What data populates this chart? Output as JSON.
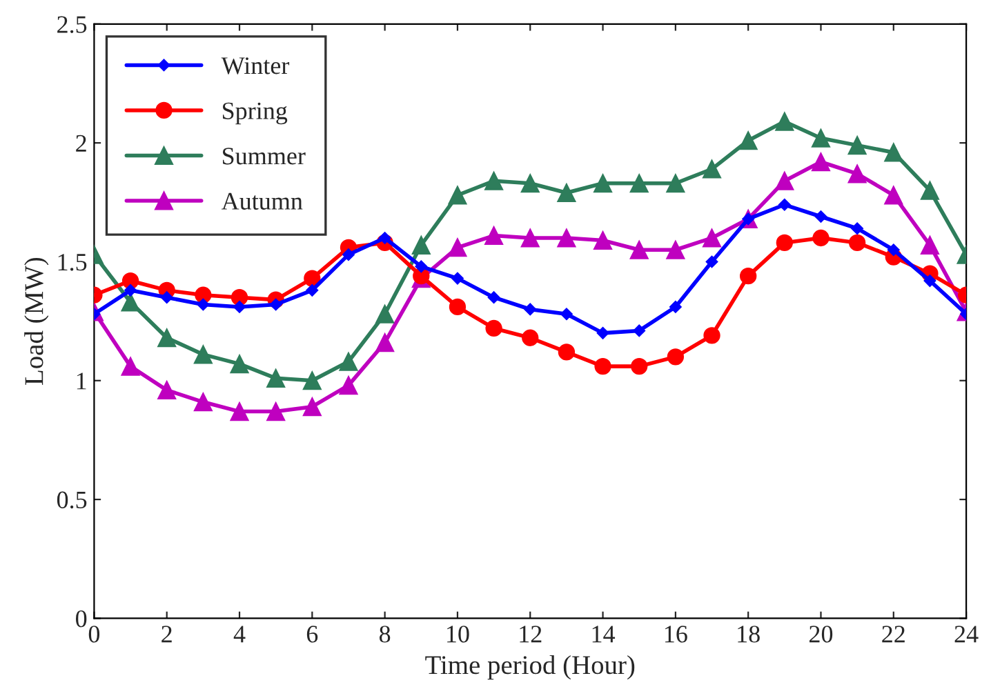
{
  "chart_data": {
    "type": "line",
    "xlabel": "Time period (Hour)",
    "ylabel": "Load (MW)",
    "x": [
      0,
      1,
      2,
      3,
      4,
      5,
      6,
      7,
      8,
      9,
      10,
      11,
      12,
      13,
      14,
      15,
      16,
      17,
      18,
      19,
      20,
      21,
      22,
      23,
      24
    ],
    "series": [
      {
        "name": "Winter",
        "color": "#0000ff",
        "marker": "diamond",
        "values": [
          1.28,
          1.38,
          1.35,
          1.32,
          1.31,
          1.32,
          1.38,
          1.53,
          1.6,
          1.48,
          1.43,
          1.35,
          1.3,
          1.28,
          1.2,
          1.21,
          1.31,
          1.5,
          1.68,
          1.74,
          1.69,
          1.64,
          1.55,
          1.42,
          1.28
        ]
      },
      {
        "name": "Spring",
        "color": "#ff0000",
        "marker": "circle",
        "values": [
          1.36,
          1.42,
          1.38,
          1.36,
          1.35,
          1.34,
          1.43,
          1.56,
          1.58,
          1.44,
          1.31,
          1.22,
          1.18,
          1.12,
          1.06,
          1.06,
          1.1,
          1.19,
          1.44,
          1.58,
          1.6,
          1.58,
          1.52,
          1.45,
          1.36
        ]
      },
      {
        "name": "Summer",
        "color": "#2e7d5b",
        "marker": "triangle",
        "values": [
          1.53,
          1.33,
          1.18,
          1.11,
          1.07,
          1.01,
          1.0,
          1.08,
          1.28,
          1.57,
          1.78,
          1.84,
          1.83,
          1.79,
          1.83,
          1.83,
          1.83,
          1.89,
          2.01,
          2.09,
          2.02,
          1.99,
          1.96,
          1.8,
          1.53
        ]
      },
      {
        "name": "Autumn",
        "color": "#bf00bf",
        "marker": "triangle",
        "values": [
          1.29,
          1.06,
          0.96,
          0.91,
          0.87,
          0.87,
          0.89,
          0.98,
          1.16,
          1.43,
          1.56,
          1.61,
          1.6,
          1.6,
          1.59,
          1.55,
          1.55,
          1.6,
          1.68,
          1.84,
          1.92,
          1.87,
          1.78,
          1.57,
          1.29
        ]
      }
    ],
    "xlim": [
      0,
      24
    ],
    "xticks": [
      0,
      2,
      4,
      6,
      8,
      10,
      12,
      14,
      16,
      18,
      20,
      22,
      24
    ],
    "ylim": [
      0,
      2.5
    ],
    "yticks": [
      0,
      0.5,
      1,
      1.5,
      2,
      2.5
    ],
    "grid": false,
    "legend": "top left",
    "line_style": "solid"
  }
}
